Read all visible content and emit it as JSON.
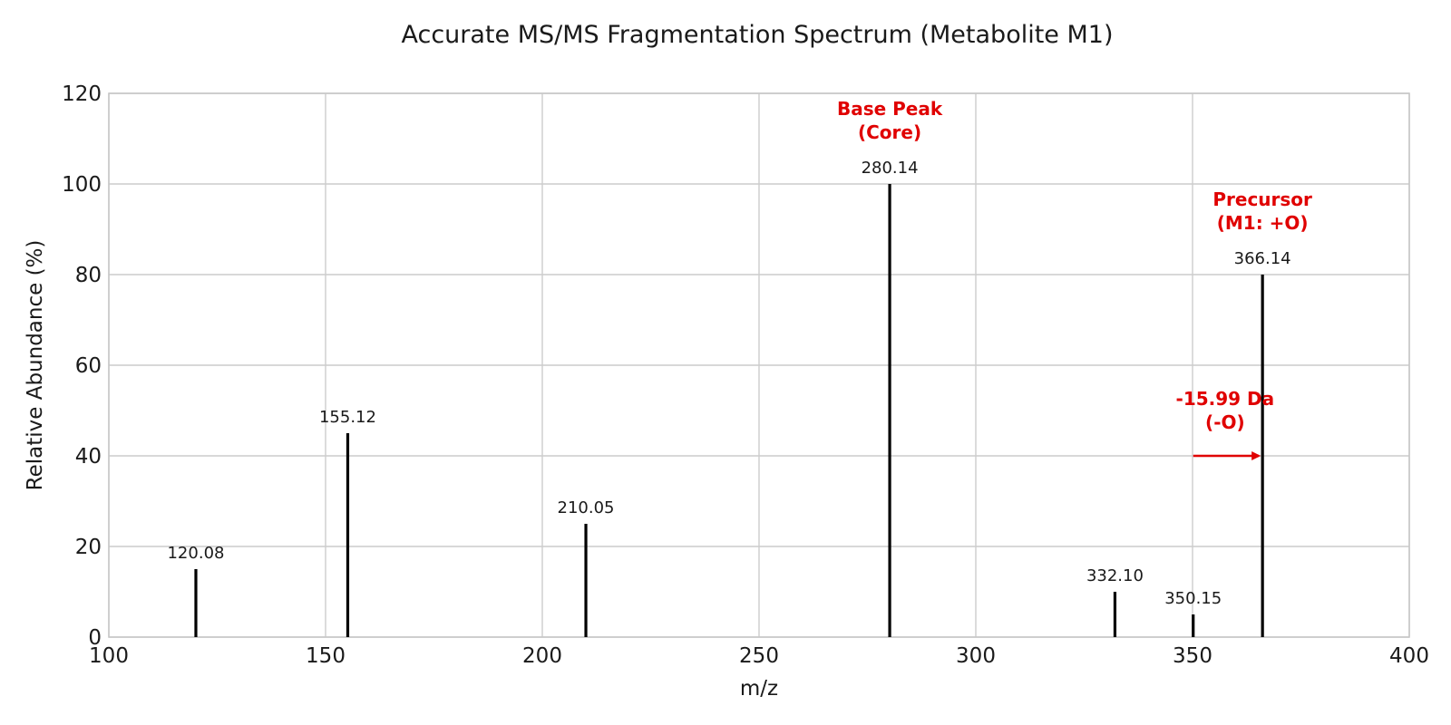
{
  "chart_data": {
    "type": "bar",
    "title": "Accurate MS/MS Fragmentation Spectrum (Metabolite M1)",
    "xlabel": "m/z",
    "ylabel": "Relative Abundance (%)",
    "xlim": [
      100,
      400
    ],
    "ylim": [
      0,
      120
    ],
    "xticks": [
      100,
      150,
      200,
      250,
      300,
      350,
      400
    ],
    "yticks": [
      0,
      20,
      40,
      60,
      80,
      100,
      120
    ],
    "grid": true,
    "legend": "none",
    "peaks": [
      {
        "mz": 120.08,
        "intensity": 15,
        "label": "120.08"
      },
      {
        "mz": 155.12,
        "intensity": 45,
        "label": "155.12"
      },
      {
        "mz": 210.05,
        "intensity": 25,
        "label": "210.05"
      },
      {
        "mz": 280.14,
        "intensity": 100,
        "label": "280.14"
      },
      {
        "mz": 332.1,
        "intensity": 10,
        "label": "332.10"
      },
      {
        "mz": 350.15,
        "intensity": 5,
        "label": "350.15"
      },
      {
        "mz": 366.14,
        "intensity": 80,
        "label": "366.14"
      }
    ],
    "annotations": [
      {
        "lines": [
          "Base Peak",
          "(Core)"
        ],
        "x": 280.14,
        "y": 110,
        "color": "#e00000"
      },
      {
        "lines": [
          "Precursor",
          "(M1: +O)"
        ],
        "x": 366.14,
        "y": 90,
        "color": "#e00000"
      },
      {
        "lines": [
          "-15.99 Da",
          "(-O)"
        ],
        "x": 357.5,
        "y": 46,
        "color": "#e00000"
      }
    ],
    "arrow": {
      "from": [
        350.15,
        40
      ],
      "to": [
        366.14,
        40
      ],
      "color": "#e00000"
    }
  }
}
